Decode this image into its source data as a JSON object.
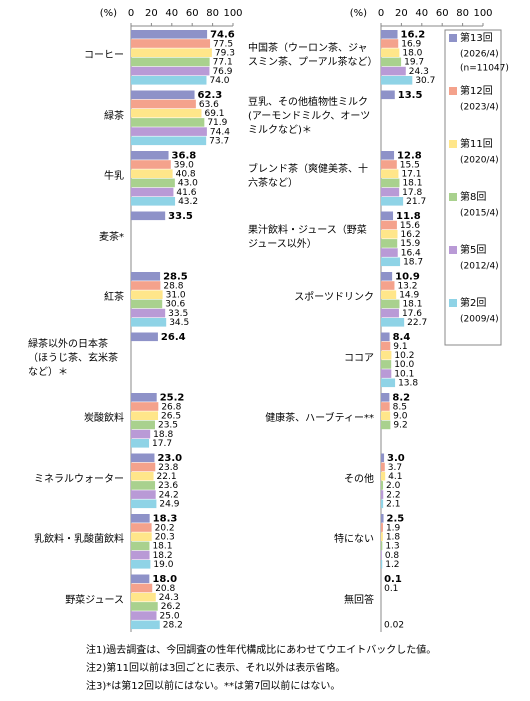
{
  "chart_data": {
    "type": "bar",
    "orientation": "horizontal",
    "unit_label": "(%)",
    "xlim": [
      0,
      100
    ],
    "xticks": [
      0,
      20,
      40,
      60,
      80,
      100
    ],
    "categories": [
      "コーヒー",
      "緑茶",
      "牛乳",
      "麦茶*",
      "紅茶",
      "緑茶以外の日本茶（ほうじ茶、玄米茶など）＊",
      "炭酸飲料",
      "ミネラルウォーター",
      "乳飲料・乳酸菌飲料",
      "野菜ジュース",
      "中国茶（ウーロン茶、ジャスミン茶、プーアル茶など）",
      "豆乳、その他植物性ミルク(アーモンドミルク、オーツミルクなど)＊",
      "ブレンド茶（爽健美茶、十六茶など）",
      "果汁飲料・ジュース（野菜ジュース以外）",
      "スポーツドリンク",
      "ココア",
      "健康茶、ハーブティー**",
      "その他",
      "特にない",
      "無回答"
    ],
    "series": [
      {
        "name": "第13回",
        "period": "(2026/4)",
        "sample": "(n=11047)",
        "color": "#8e92c8",
        "values": [
          74.6,
          62.3,
          36.8,
          33.5,
          28.5,
          26.4,
          25.2,
          23.0,
          18.3,
          18.0,
          16.2,
          13.5,
          12.8,
          11.8,
          10.9,
          8.4,
          8.2,
          3.0,
          2.5,
          0.1
        ],
        "value_labels": [
          "74.6",
          "62.3",
          "36.8",
          "33.5",
          "28.5",
          "26.4",
          "25.2",
          "23.0",
          "18.3",
          "18.0",
          "16.2",
          "13.5",
          "12.8",
          "11.8",
          "10.9",
          "8.4",
          "8.2",
          "3.0",
          "2.5",
          "0.1"
        ]
      },
      {
        "name": "第12回",
        "period": "(2023/4)",
        "color": "#f4a28c",
        "values": [
          77.5,
          63.6,
          39.0,
          null,
          28.8,
          null,
          26.8,
          23.8,
          20.2,
          20.8,
          16.9,
          null,
          15.5,
          15.6,
          13.2,
          9.1,
          8.5,
          3.7,
          1.9,
          0.1
        ],
        "value_labels": [
          "77.5",
          "63.6",
          "39.0",
          null,
          "28.8",
          null,
          "26.8",
          "23.8",
          "20.2",
          "20.8",
          "16.9",
          null,
          "15.5",
          "15.6",
          "13.2",
          "9.1",
          "8.5",
          "3.7",
          "1.9",
          "0.1"
        ]
      },
      {
        "name": "第11回",
        "period": "(2020/4)",
        "color": "#ffe68a",
        "values": [
          79.3,
          69.1,
          40.8,
          null,
          31.0,
          null,
          26.5,
          22.1,
          20.3,
          24.3,
          18.0,
          null,
          17.1,
          16.2,
          14.9,
          10.2,
          9.0,
          4.1,
          1.8,
          null
        ],
        "value_labels": [
          "79.3",
          "69.1",
          "40.8",
          null,
          "31.0",
          null,
          "26.5",
          "22.1",
          "20.3",
          "24.3",
          "18.0",
          null,
          "17.1",
          "16.2",
          "14.9",
          "10.2",
          "9.0",
          "4.1",
          "1.8",
          null
        ]
      },
      {
        "name": "第8回",
        "period": "(2015/4)",
        "color": "#a9d18e",
        "values": [
          77.1,
          71.9,
          43.0,
          null,
          30.6,
          null,
          23.5,
          23.6,
          18.1,
          26.2,
          19.7,
          null,
          18.1,
          15.9,
          18.1,
          10.0,
          9.2,
          2.0,
          1.3,
          null
        ],
        "value_labels": [
          "77.1",
          "71.9",
          "43.0",
          null,
          "30.6",
          null,
          "23.5",
          "23.6",
          "18.1",
          "26.2",
          "19.7",
          null,
          "18.1",
          "15.9",
          "18.1",
          "10.0",
          "9.2",
          "2.0",
          "1.3",
          null
        ]
      },
      {
        "name": "第5回",
        "period": "(2012/4)",
        "color": "#b99ad6",
        "values": [
          76.9,
          74.4,
          41.6,
          null,
          33.5,
          null,
          18.8,
          24.2,
          18.2,
          25.0,
          24.3,
          null,
          17.8,
          16.4,
          17.6,
          10.1,
          null,
          2.2,
          0.8,
          null
        ],
        "value_labels": [
          "76.9",
          "74.4",
          "41.6",
          null,
          "33.5",
          null,
          "18.8",
          "24.2",
          "18.2",
          "25.0",
          "24.3",
          null,
          "17.8",
          "16.4",
          "17.6",
          "10.1",
          null,
          "2.2",
          "0.8",
          null
        ]
      },
      {
        "name": "第2回",
        "period": "(2009/4)",
        "color": "#8fd3e6",
        "values": [
          74.0,
          73.7,
          43.2,
          null,
          34.5,
          null,
          17.7,
          24.9,
          19.0,
          28.2,
          30.7,
          null,
          21.7,
          18.7,
          22.7,
          13.8,
          null,
          2.1,
          1.2,
          0.02
        ],
        "value_labels": [
          "74.0",
          "73.7",
          "43.2",
          null,
          "34.5",
          null,
          "17.7",
          "24.9",
          "19.0",
          "28.2",
          "30.7",
          null,
          "21.7",
          "18.7",
          "22.7",
          "13.8",
          null,
          "2.1",
          "1.2",
          "0.02"
        ]
      }
    ],
    "notes": [
      "注1)過去調査は、今回調査の性年代構成比にあわせてウエイトバックした値。",
      "注2)第11回以前は3回ごとに表示、それ以外は表示省略。",
      "注3)*は第12回以前にはない。**は第7回以前にはない。"
    ]
  }
}
